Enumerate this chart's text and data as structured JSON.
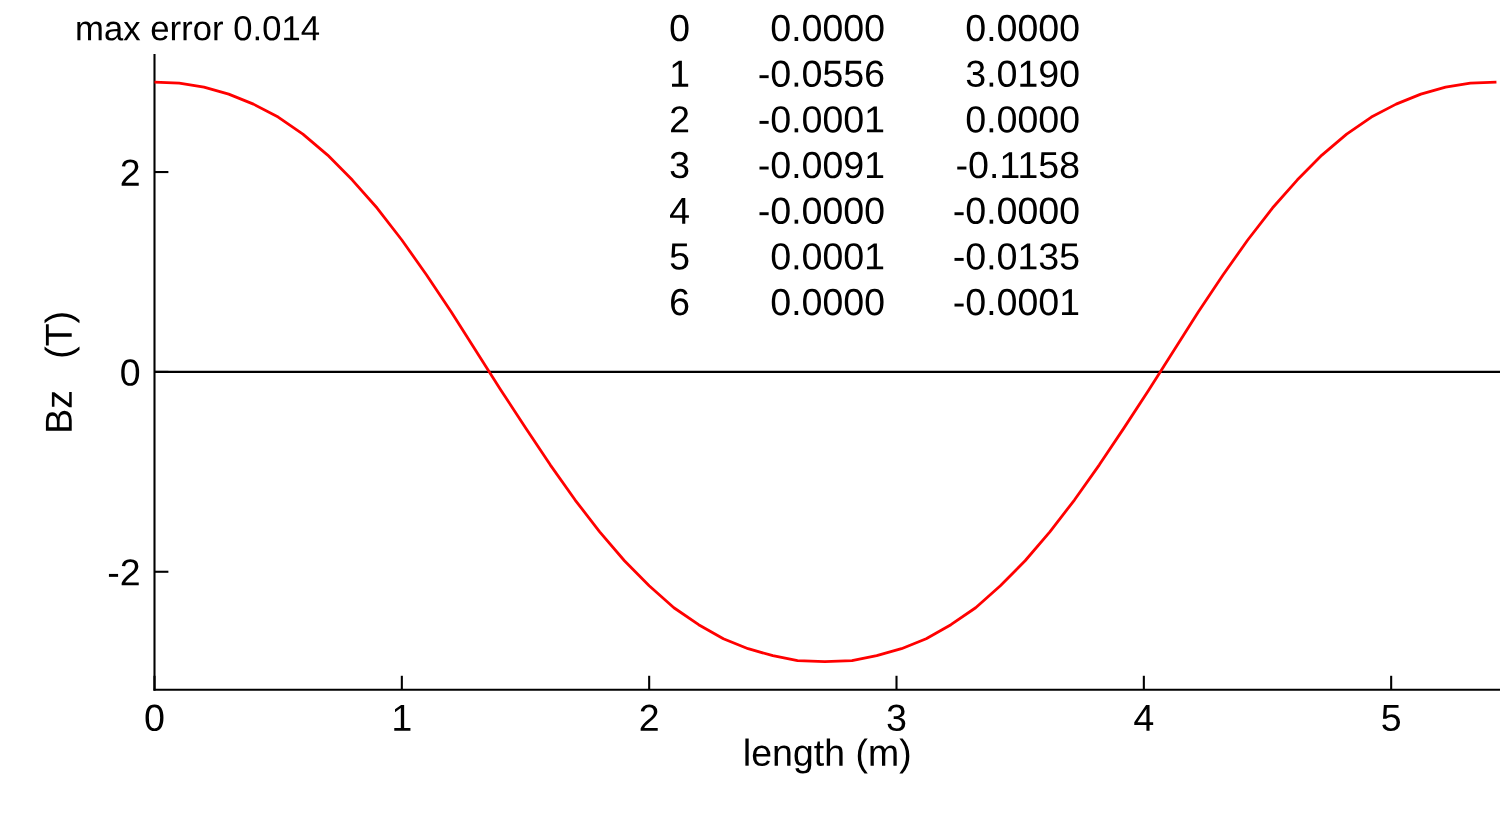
{
  "chart_data": {
    "type": "line",
    "xlabel": "length (m)",
    "ylabel": "Bz   (T)",
    "x": [
      0,
      0.1,
      0.2,
      0.3,
      0.4,
      0.5,
      0.6,
      0.7,
      0.8,
      0.9,
      1.0,
      1.1,
      1.2,
      1.3,
      1.4,
      1.5,
      1.6,
      1.7,
      1.8,
      1.9,
      2.0,
      2.1,
      2.2,
      2.3,
      2.4,
      2.5,
      2.6,
      2.71,
      2.82,
      2.92,
      3.02,
      3.12,
      3.22,
      3.32,
      3.42,
      3.52,
      3.62,
      3.72,
      3.82,
      3.92,
      4.02,
      4.12,
      4.22,
      4.32,
      4.42,
      4.52,
      4.62,
      4.72,
      4.82,
      4.92,
      5.02,
      5.12,
      5.22,
      5.32,
      5.42
    ],
    "series": [
      {
        "color": "#ff0000",
        "values": [
          2.9,
          2.89,
          2.85,
          2.78,
          2.68,
          2.55,
          2.38,
          2.17,
          1.92,
          1.64,
          1.32,
          0.97,
          0.6,
          0.21,
          -0.18,
          -0.56,
          -0.93,
          -1.28,
          -1.6,
          -1.89,
          -2.14,
          -2.36,
          -2.53,
          -2.67,
          -2.77,
          -2.84,
          -2.89,
          -2.9,
          -2.89,
          -2.84,
          -2.77,
          -2.67,
          -2.53,
          -2.36,
          -2.14,
          -1.89,
          -1.6,
          -1.28,
          -0.93,
          -0.56,
          -0.18,
          0.21,
          0.6,
          0.97,
          1.32,
          1.64,
          1.92,
          2.17,
          2.38,
          2.55,
          2.68,
          2.78,
          2.85,
          2.89,
          2.9
        ]
      }
    ],
    "xlim": [
      0,
      5.44
    ],
    "ylim": [
      -3.18,
      3.17
    ],
    "xticks": [
      0,
      1,
      2,
      3,
      4,
      5
    ],
    "yticks": [
      -2,
      0,
      2
    ],
    "ref_lines": [
      {
        "axis": "y",
        "value": 0,
        "color": "#000000"
      }
    ],
    "grid": false,
    "legend": false,
    "marker": "none",
    "line_style": "solid",
    "annotations": [
      "max error 0.014",
      "0 0.0000 0.0000",
      "1 -0.0556 3.0190",
      "2 -0.0001 0.0000",
      "3 -0.0091 -0.1158",
      "4 -0.0000 -0.0000",
      "5 0.0001 -0.0135",
      "6 0.0000 -0.0001"
    ]
  }
}
